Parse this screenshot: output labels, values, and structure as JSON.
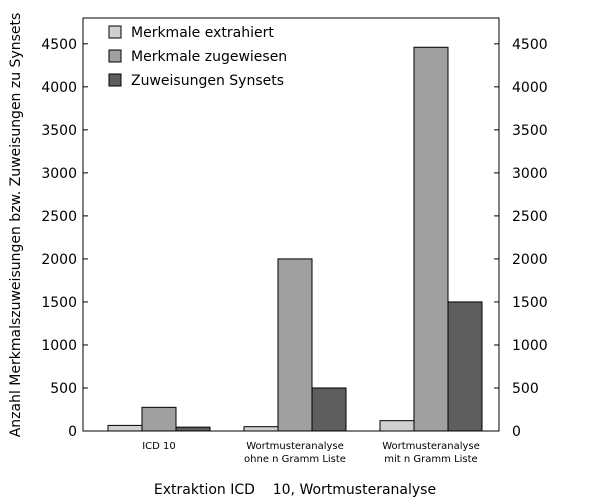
{
  "chart_data": {
    "type": "bar",
    "title": "",
    "xlabel": "Extraktion ICD    10, Wortmusteranalyse",
    "ylabel": "Anzahl Merkmalszuweisungen bzw. Zuweisungen zu Synsets",
    "ylim": [
      0,
      4800
    ],
    "yticks": [
      0,
      500,
      1000,
      1500,
      2000,
      2500,
      3000,
      3500,
      4000,
      4500
    ],
    "secondary_y_axis": true,
    "grid": false,
    "legend_position": "top-left",
    "categories": [
      [
        "ICD    10"
      ],
      [
        "Wortmusteranalyse",
        "ohne n    Gramm    Liste"
      ],
      [
        "Wortmusteranalyse",
        "mit n     Gramm     Liste"
      ]
    ],
    "series": [
      {
        "name": "Merkmale extrahiert",
        "color": "#d0d0d0",
        "values": [
          65,
          50,
          120
        ]
      },
      {
        "name": "Merkmale zugewiesen",
        "color": "#a0a0a0",
        "values": [
          275,
          2000,
          4460
        ]
      },
      {
        "name": "Zuweisungen Synsets",
        "color": "#5e5e5e",
        "values": [
          45,
          500,
          1500
        ]
      }
    ]
  }
}
